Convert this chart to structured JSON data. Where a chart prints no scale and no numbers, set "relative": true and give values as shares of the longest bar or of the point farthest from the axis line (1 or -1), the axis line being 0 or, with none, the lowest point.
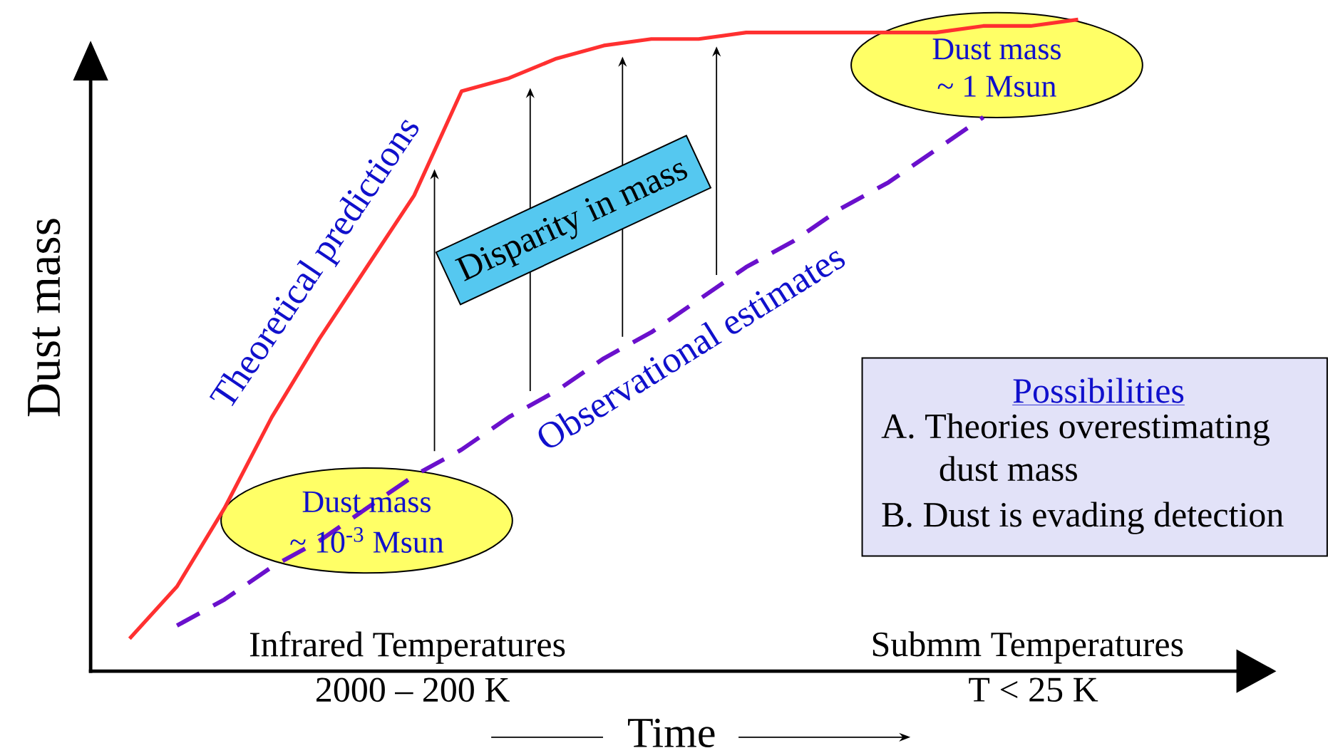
{
  "chart_data": {
    "type": "line",
    "relative": true,
    "xlabel": "Time",
    "ylabel": "Dust mass",
    "categories": [
      null,
      null,
      null,
      null,
      null,
      null,
      null,
      null,
      null,
      null,
      null,
      null,
      null,
      null,
      null,
      null,
      null,
      null,
      null,
      null,
      null
    ],
    "series": [
      {
        "name": "Theoretical predictions",
        "color": "#ff3030",
        "values": [
          0.05,
          0.13,
          0.25,
          0.39,
          0.51,
          0.62,
          0.73,
          0.89,
          0.91,
          0.94,
          0.96,
          0.97,
          0.97,
          0.98,
          0.98,
          0.98,
          0.98,
          0.98,
          0.99,
          0.99,
          1.0
        ]
      },
      {
        "name": "Observational estimates",
        "color": "#6a10cc",
        "line_style": "dashed",
        "values": [
          null,
          0.07,
          0.11,
          0.16,
          0.2,
          0.25,
          0.3,
          0.34,
          0.39,
          0.43,
          0.48,
          0.52,
          0.57,
          0.62,
          0.66,
          0.71,
          0.75,
          0.8,
          0.85,
          null,
          null
        ]
      }
    ],
    "annotations": [
      "Dust mass",
      "~ 10$^{-3}$ Msun",
      "Dust mass",
      "~ 1 Msun",
      "Disparity in mass",
      "Infrared Temperatures",
      "2000 – 200 K",
      "Submm Temperatures",
      "T < 25 K",
      "Possibilities",
      "A. Theories overestimating dust mass",
      "B. Dust is evading detection"
    ]
  }
}
